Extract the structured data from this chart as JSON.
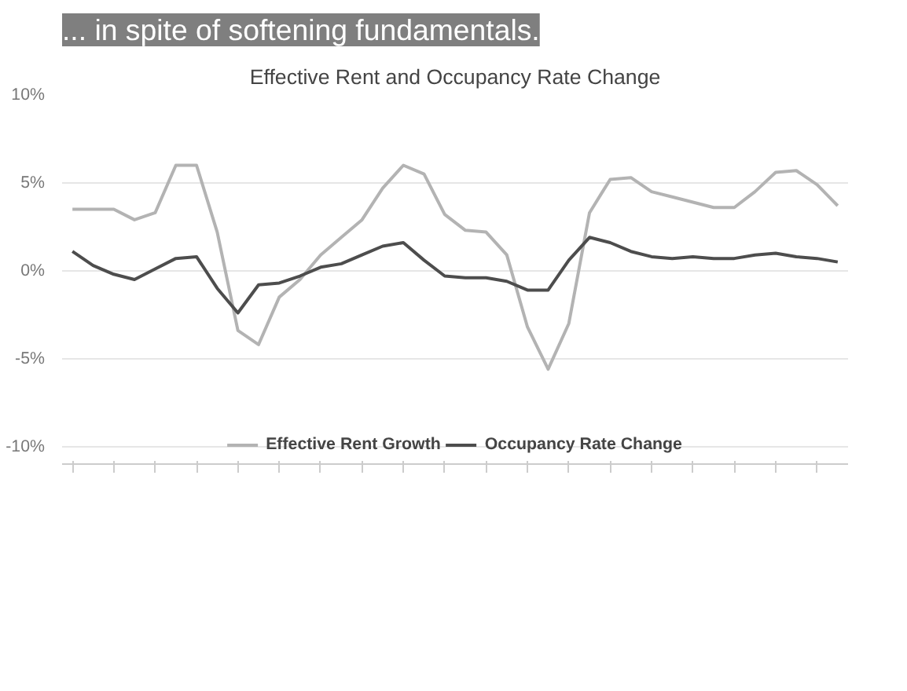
{
  "chart_data": {
    "type": "line",
    "title": "Effective Rent and Occupancy Rate Change",
    "annotations": [
      "... in spite of softening fundamentals."
    ],
    "categories": [
      null,
      null,
      null,
      null,
      null,
      null,
      null,
      null,
      null,
      null,
      null,
      null,
      null,
      null,
      null,
      null,
      null,
      null,
      null,
      null,
      null,
      null,
      null,
      null,
      null,
      null,
      null,
      null,
      null,
      null,
      null,
      null,
      null,
      null,
      null,
      null,
      null,
      null
    ],
    "ylim": [
      -11,
      10
    ],
    "yticks": [
      {
        "value": -10,
        "label": "-10%"
      },
      {
        "value": -5,
        "label": "-5%"
      },
      {
        "value": 0,
        "label": "0%"
      },
      {
        "value": 5,
        "label": "5%"
      },
      {
        "value": 10,
        "label": "10%"
      }
    ],
    "grid": "y",
    "legend": "bottom",
    "line_style": "solid",
    "series": [
      {
        "name": "Effective Rent Growth",
        "color": "#b3b3b3",
        "values": [
          3.5,
          3.5,
          3.5,
          2.9,
          3.3,
          6.0,
          6.0,
          2.2,
          -3.4,
          -4.2,
          -1.5,
          -0.5,
          0.9,
          1.9,
          2.9,
          4.7,
          6.0,
          5.5,
          3.2,
          2.3,
          2.2,
          0.9,
          -3.2,
          -5.6,
          -3.0,
          3.3,
          5.2,
          5.3,
          4.5,
          4.2,
          3.9,
          3.6,
          3.6,
          4.5,
          5.6,
          5.7,
          4.9,
          3.7
        ]
      },
      {
        "name": "Occupancy Rate Change",
        "color": "#4d4d4d",
        "values": [
          1.1,
          0.3,
          -0.2,
          -0.5,
          0.1,
          0.7,
          0.8,
          -1.0,
          -2.4,
          -0.8,
          -0.7,
          -0.3,
          0.2,
          0.4,
          0.9,
          1.4,
          1.6,
          0.6,
          -0.3,
          -0.4,
          -0.4,
          -0.6,
          -1.1,
          -1.1,
          0.6,
          1.9,
          1.6,
          1.1,
          0.8,
          0.7,
          0.8,
          0.7,
          0.7,
          0.9,
          1.0,
          0.8,
          0.7,
          0.5
        ]
      }
    ]
  }
}
